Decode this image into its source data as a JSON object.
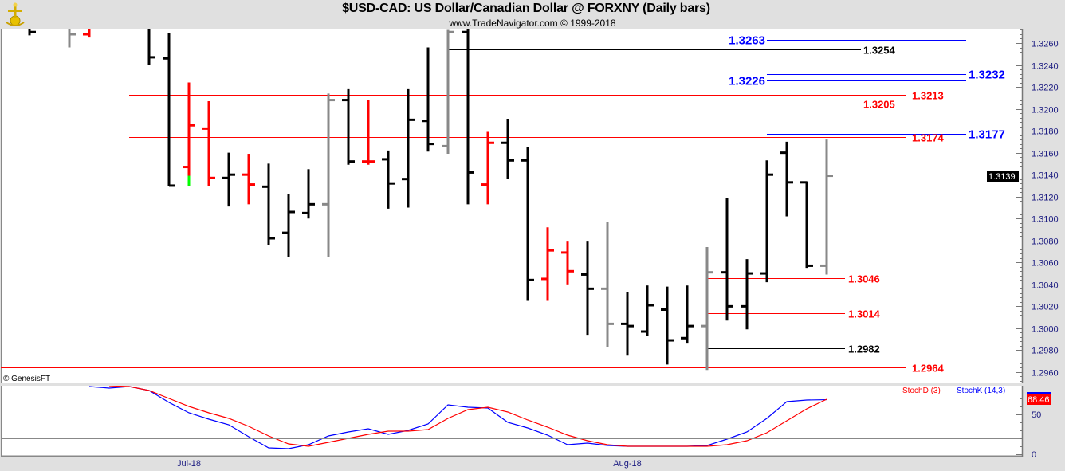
{
  "header": {
    "title": "$USD-CAD:  US Dollar/Canadian Dollar @ FORXNY  (Daily bars)",
    "subtitle": "www.TradeNavigator.com © 1999-2018",
    "logo_icon": "gold-sextant-logo-icon"
  },
  "copyright": "© GenesisFT",
  "colors": {
    "up": "#000000",
    "down": "#ff0000",
    "neutral": "#888888",
    "blue": "#0000ff",
    "axis_text": "#1a1a80"
  },
  "chart_data": [
    {
      "type": "ohlc",
      "title": "$USD-CAD Daily bars",
      "y_axis": {
        "min": 1.295,
        "max": 1.3275,
        "ticks": [
          "1.2960",
          "1.2980",
          "1.3000",
          "1.3020",
          "1.3040",
          "1.3060",
          "1.3080",
          "1.3100",
          "1.3120",
          "1.3140",
          "1.3160",
          "1.3180",
          "1.3200",
          "1.3220",
          "1.3240",
          "1.3260"
        ]
      },
      "x_axis": {
        "tick_labels": [
          {
            "label": "Jul-18",
            "bar": 8
          },
          {
            "label": "Aug-18",
            "bar": 30
          }
        ]
      },
      "last_price": "1.3139",
      "bars": [
        {
          "o": 1.3275,
          "h": 1.3285,
          "l": 1.3267,
          "c": 1.327,
          "color": "black"
        },
        null,
        {
          "o": 1.3275,
          "h": 1.3285,
          "l": 1.3256,
          "c": 1.3268,
          "color": "gray"
        },
        {
          "o": 1.3268,
          "h": 1.328,
          "l": 1.3265,
          "c": 1.3275,
          "color": "red"
        },
        null,
        null,
        {
          "o": 1.328,
          "h": 1.329,
          "l": 1.324,
          "c": 1.3247,
          "color": "black"
        },
        {
          "o": 1.3246,
          "h": 1.3269,
          "l": 1.313,
          "c": 1.313,
          "color": "black"
        },
        {
          "o": 1.3147,
          "h": 1.3224,
          "l": 1.313,
          "c": 1.3185,
          "color": "red",
          "tail_green_to": 1.3139
        },
        {
          "o": 1.3182,
          "h": 1.3207,
          "l": 1.313,
          "c": 1.3137,
          "color": "red"
        },
        {
          "o": 1.3137,
          "h": 1.316,
          "l": 1.3111,
          "c": 1.314,
          "color": "black"
        },
        {
          "o": 1.314,
          "h": 1.3159,
          "l": 1.3113,
          "c": 1.3131,
          "color": "red"
        },
        {
          "o": 1.3129,
          "h": 1.315,
          "l": 1.3076,
          "c": 1.3082,
          "color": "black"
        },
        {
          "o": 1.3087,
          "h": 1.3122,
          "l": 1.3065,
          "c": 1.3106,
          "color": "black"
        },
        {
          "o": 1.3105,
          "h": 1.3145,
          "l": 1.31,
          "c": 1.3113,
          "color": "black"
        },
        {
          "o": 1.3113,
          "h": 1.3214,
          "l": 1.3065,
          "c": 1.3208,
          "color": "gray"
        },
        {
          "o": 1.3208,
          "h": 1.3218,
          "l": 1.3149,
          "c": 1.3152,
          "color": "black"
        },
        {
          "o": 1.3152,
          "h": 1.3208,
          "l": 1.3149,
          "c": 1.3152,
          "color": "red"
        },
        {
          "o": 1.3154,
          "h": 1.3162,
          "l": 1.3109,
          "c": 1.3132,
          "color": "black"
        },
        {
          "o": 1.3136,
          "h": 1.3218,
          "l": 1.311,
          "c": 1.319,
          "color": "black"
        },
        {
          "o": 1.3189,
          "h": 1.3256,
          "l": 1.3161,
          "c": 1.3168,
          "color": "black"
        },
        {
          "o": 1.3166,
          "h": 1.3272,
          "l": 1.3159,
          "c": 1.327,
          "color": "gray"
        },
        {
          "o": 1.327,
          "h": 1.3275,
          "l": 1.3113,
          "c": 1.3142,
          "color": "black"
        },
        {
          "o": 1.3131,
          "h": 1.3179,
          "l": 1.3113,
          "c": 1.3169,
          "color": "red"
        },
        {
          "o": 1.3169,
          "h": 1.3191,
          "l": 1.3136,
          "c": 1.3153,
          "color": "black"
        },
        {
          "o": 1.3153,
          "h": 1.3165,
          "l": 1.3025,
          "c": 1.3044,
          "color": "black"
        },
        {
          "o": 1.3045,
          "h": 1.3092,
          "l": 1.3025,
          "c": 1.3071,
          "color": "red"
        },
        {
          "o": 1.3069,
          "h": 1.3079,
          "l": 1.304,
          "c": 1.3052,
          "color": "red"
        },
        {
          "o": 1.3049,
          "h": 1.3079,
          "l": 1.2994,
          "c": 1.3036,
          "color": "black"
        },
        {
          "o": 1.3036,
          "h": 1.3097,
          "l": 1.2983,
          "c": 1.3004,
          "color": "gray"
        },
        {
          "o": 1.3004,
          "h": 1.3033,
          "l": 1.2975,
          "c": 1.3002,
          "color": "black"
        },
        {
          "o": 1.2997,
          "h": 1.3039,
          "l": 1.2993,
          "c": 1.3021,
          "color": "black"
        },
        {
          "o": 1.3017,
          "h": 1.3038,
          "l": 1.2967,
          "c": 1.2989,
          "color": "black"
        },
        {
          "o": 1.2991,
          "h": 1.3039,
          "l": 1.2986,
          "c": 1.3002,
          "color": "black"
        },
        {
          "o": 1.3002,
          "h": 1.3074,
          "l": 1.2962,
          "c": 1.3051,
          "color": "gray"
        },
        {
          "o": 1.3051,
          "h": 1.3119,
          "l": 1.3007,
          "c": 1.302,
          "color": "black"
        },
        {
          "o": 1.302,
          "h": 1.3063,
          "l": 1.2999,
          "c": 1.305,
          "color": "black"
        },
        {
          "o": 1.305,
          "h": 1.3153,
          "l": 1.3042,
          "c": 1.314,
          "color": "black"
        },
        {
          "o": 1.316,
          "h": 1.317,
          "l": 1.3102,
          "c": 1.3133,
          "color": "black"
        },
        {
          "o": 1.3133,
          "h": 1.3134,
          "l": 1.3055,
          "c": 1.3057,
          "color": "black"
        },
        {
          "o": 1.3057,
          "h": 1.3172,
          "l": 1.3049,
          "c": 1.3139,
          "color": "gray"
        }
      ],
      "levels": [
        {
          "value": 1.3263,
          "label": "1.3263",
          "color": "blue",
          "label_side": "left",
          "from_bar": 37,
          "to": "far"
        },
        {
          "value": 1.3254,
          "label": "1.3254",
          "color": "black",
          "label_side": "right",
          "from_bar": 21,
          "to": "mid"
        },
        {
          "value": 1.3232,
          "label": "1.3232",
          "color": "blue",
          "label_side": "right",
          "from_bar": 37,
          "to": "far"
        },
        {
          "value": 1.3226,
          "label": "1.3226",
          "color": "blue",
          "label_side": "left",
          "from_bar": 37,
          "to": "far"
        },
        {
          "value": 1.3213,
          "label": "1.3213",
          "color": "red",
          "label_side": "right",
          "from_bar": 5,
          "to": "long"
        },
        {
          "value": 1.3205,
          "label": "1.3205",
          "color": "red",
          "label_side": "right",
          "from_bar": 21,
          "to": "mid"
        },
        {
          "value": 1.3177,
          "label": "1.3177",
          "color": "blue",
          "label_side": "right",
          "from_bar": 37,
          "to": "far"
        },
        {
          "value": 1.3174,
          "label": "1.3174",
          "color": "red",
          "label_side": "right",
          "from_bar": 5,
          "to": "long"
        },
        {
          "value": 1.3046,
          "label": "1.3046",
          "color": "red",
          "label_side": "right",
          "from_bar": 34,
          "to": "short"
        },
        {
          "value": 1.3014,
          "label": "1.3014",
          "color": "red",
          "label_side": "right",
          "from_bar": 34,
          "to": "short"
        },
        {
          "value": 1.2982,
          "label": "1.2982",
          "color": "black",
          "label_side": "right",
          "from_bar": 34,
          "to": "short"
        },
        {
          "value": 1.2964,
          "label": "1.2964",
          "color": "red",
          "label_side": "right",
          "from_bar": -1,
          "to": "long"
        }
      ]
    },
    {
      "type": "line",
      "title": "Stochastic",
      "y_axis": {
        "min": 0,
        "max": 100,
        "ticks": [
          "0",
          "50"
        ],
        "bands": [
          20,
          80
        ]
      },
      "legend": [
        {
          "name": "StochD (3)",
          "color": "red"
        },
        {
          "name": "StochK (14,3)",
          "color": "blue"
        }
      ],
      "legend_placement": "top-right",
      "last_value": "68.46",
      "series": [
        {
          "name": "StochK (14,3)",
          "color": "blue",
          "start_bar": 3,
          "values": [
            85,
            83,
            85,
            80,
            65,
            52,
            44,
            37,
            22,
            8,
            7,
            12,
            23,
            28,
            32,
            25,
            30,
            38,
            62,
            59,
            58,
            40,
            33,
            24,
            12,
            14,
            11,
            10,
            10,
            10,
            10,
            11,
            19,
            28,
            45,
            66,
            68,
            68.46
          ]
        },
        {
          "name": "StochD (3)",
          "color": "red",
          "start_bar": 4,
          "values": [
            86,
            85,
            80,
            70,
            60,
            52,
            45,
            35,
            23,
            13,
            10,
            15,
            20,
            25,
            29,
            29,
            31,
            45,
            56,
            59,
            53,
            43,
            34,
            24,
            17,
            12,
            10,
            10,
            10,
            10,
            10,
            12,
            17,
            27,
            42,
            57,
            69
          ]
        }
      ]
    }
  ]
}
